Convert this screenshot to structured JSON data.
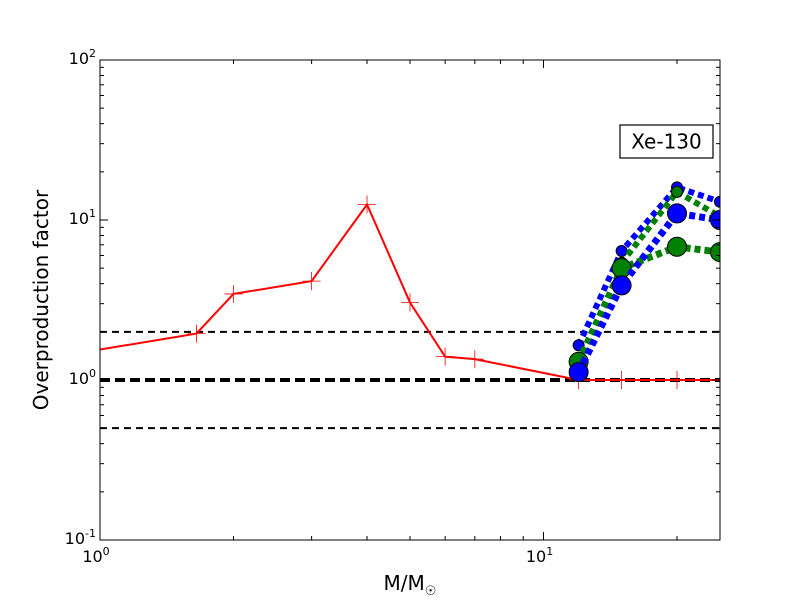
{
  "chart_data": {
    "type": "line",
    "title": "",
    "xlabel": "M/M",
    "xlabel_sub": "☉",
    "ylabel": "Overproduction factor",
    "xscale": "log",
    "yscale": "log",
    "xlim": [
      1,
      25
    ],
    "ylim": [
      0.1,
      100
    ],
    "x_ticks": [
      {
        "value": 1,
        "base": "10",
        "exp": "0"
      },
      {
        "value": 10,
        "base": "10",
        "exp": "1"
      }
    ],
    "y_ticks": [
      {
        "value": 0.1,
        "base": "10",
        "exp": "-1"
      },
      {
        "value": 1,
        "base": "10",
        "exp": "0"
      },
      {
        "value": 10,
        "base": "10",
        "exp": "1"
      },
      {
        "value": 100,
        "base": "10",
        "exp": "2"
      }
    ],
    "annotation": "Xe-130",
    "reference_lines": [
      {
        "y": 2.0,
        "style": "dashed",
        "weight": "thin"
      },
      {
        "y": 1.0,
        "style": "dashed",
        "weight": "thick"
      },
      {
        "y": 0.5,
        "style": "dashed",
        "weight": "thin"
      }
    ],
    "series": [
      {
        "color": "#ff0000",
        "line_style": "solid",
        "marker": "plus",
        "x": [
          1.0,
          1.65,
          2.0,
          3.0,
          4.0,
          5.0,
          6.0,
          7.0,
          12.0,
          15.0,
          20.0,
          25.0
        ],
        "y": [
          1.55,
          1.95,
          3.45,
          4.15,
          12.5,
          3.05,
          1.4,
          1.35,
          1.0,
          1.0,
          1.0,
          1.0
        ],
        "marker_from_index": 1
      },
      {
        "color": "#0000ff",
        "line_style": "dotted",
        "marker": "circle",
        "marker_size": "small",
        "x": [
          12.0,
          15.0,
          20.0,
          25.0
        ],
        "y": [
          1.65,
          6.4,
          16.0,
          13.0
        ]
      },
      {
        "color": "#008000",
        "line_style": "dotted",
        "marker": "circle",
        "marker_size": "small",
        "x": [
          15.0,
          20.0,
          25.0
        ],
        "y": [
          5.4,
          15.0,
          10.5
        ]
      },
      {
        "color": "#008000",
        "line_style": "dotted",
        "marker": "circle",
        "marker_size": "large",
        "x": [
          12.0,
          15.0,
          20.0,
          25.0
        ],
        "y": [
          1.3,
          5.0,
          6.8,
          6.3
        ]
      },
      {
        "color": "#0000ff",
        "line_style": "dotted",
        "marker": "circle",
        "marker_size": "large",
        "x": [
          12.0,
          15.0,
          20.0,
          25.0
        ],
        "y": [
          1.12,
          3.9,
          11.0,
          10.0
        ]
      }
    ]
  }
}
